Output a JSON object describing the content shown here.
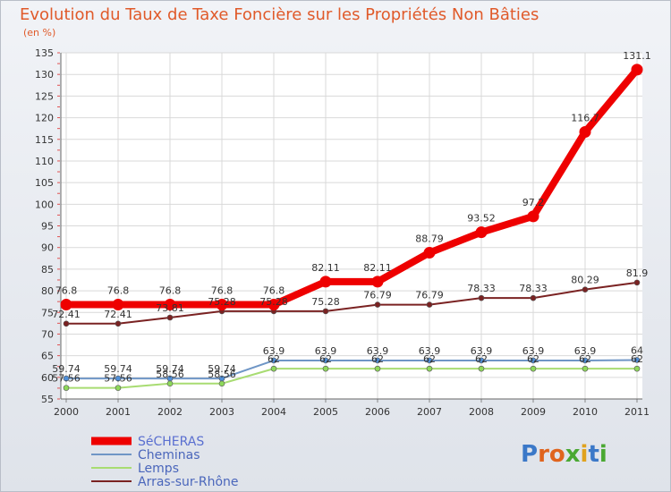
{
  "title": "Evolution du Taux de Taxe Foncière sur les Propriétés Non Bâties",
  "unit": "(en %)",
  "logo": {
    "letters": [
      "P",
      "r",
      "o",
      "x",
      "i",
      "t",
      "i"
    ],
    "colors": [
      "#3b78c8",
      "#e0641e",
      "#e0641e",
      "#4aa832",
      "#e0a21e",
      "#3b78c8",
      "#4aa832"
    ]
  },
  "chart_data": {
    "type": "line",
    "x": [
      "2000",
      "2001",
      "2002",
      "2003",
      "2004",
      "2005",
      "2006",
      "2007",
      "2008",
      "2009",
      "2010",
      "2011"
    ],
    "ylim": [
      55,
      135
    ],
    "yticks": [
      55,
      60,
      65,
      70,
      75,
      80,
      85,
      90,
      95,
      100,
      105,
      110,
      115,
      120,
      125,
      130,
      135
    ],
    "grid": true,
    "legend_position": "bottom-left",
    "series": [
      {
        "name": "SéCHERAS",
        "color": "#ee0000",
        "values": [
          76.8,
          76.8,
          76.8,
          76.8,
          76.8,
          82.11,
          82.11,
          88.79,
          93.52,
          97.2,
          116.7,
          131.1
        ],
        "labels": [
          "76.8",
          "76.8",
          "76.8",
          "76.8",
          "76.8",
          "82.11",
          "82.11",
          "88.79",
          "93.52",
          "97.2",
          "116.7",
          "131.1"
        ]
      },
      {
        "name": "Cheminas",
        "color": "#6f96c6",
        "values": [
          59.74,
          59.74,
          59.74,
          59.74,
          63.9,
          63.9,
          63.9,
          63.9,
          63.9,
          63.9,
          63.9,
          64
        ],
        "labels": [
          "59.74",
          "59.74",
          "59.74",
          "59.74",
          "63.9",
          "63.9",
          "63.9",
          "63.9",
          "63.9",
          "63.9",
          "63.9",
          "64"
        ]
      },
      {
        "name": "Lemps",
        "color": "#a8dc72",
        "values": [
          57.56,
          57.56,
          58.56,
          58.56,
          62,
          62,
          62,
          62,
          62,
          62,
          62,
          62
        ],
        "labels": [
          "57.56",
          "57.56",
          "58.56",
          "58.56",
          "62",
          "62",
          "62",
          "62",
          "62",
          "62",
          "62",
          "62"
        ]
      },
      {
        "name": "Arras-sur-Rhône",
        "color": "#7a2222",
        "values": [
          72.41,
          72.41,
          73.81,
          75.28,
          75.28,
          75.28,
          76.79,
          76.79,
          78.33,
          78.33,
          80.29,
          81.9
        ],
        "labels": [
          "72.41",
          "72.41",
          "73.81",
          "75.28",
          "75.28",
          "75.28",
          "76.79",
          "76.79",
          "78.33",
          "78.33",
          "80.29",
          "81.9"
        ]
      }
    ]
  }
}
